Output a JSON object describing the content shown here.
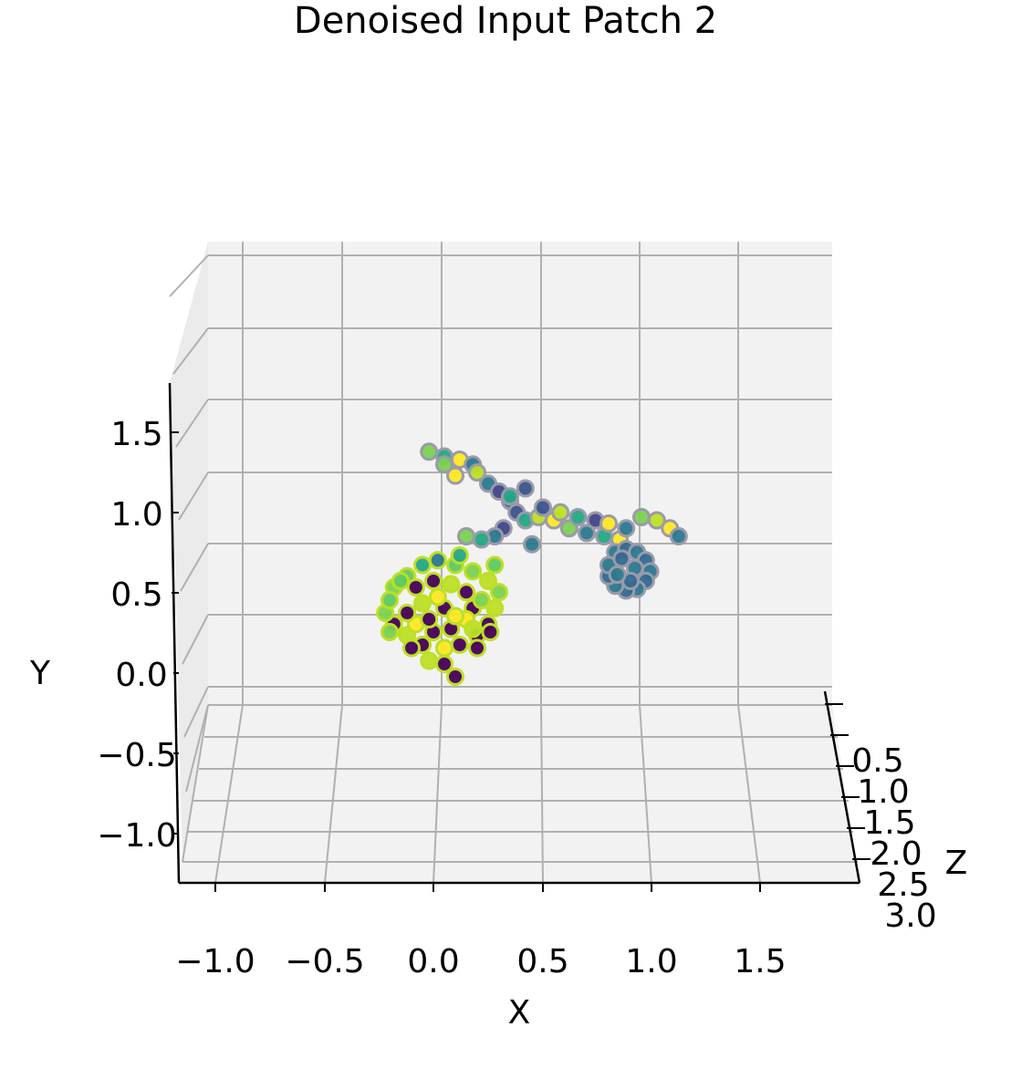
{
  "chart_data": {
    "type": "scatter",
    "title": "Denoised Input Patch 2",
    "xlabel": "X",
    "ylabel": "Y",
    "zlabel": "Z",
    "x_ticks": [
      "−1.0",
      "−0.5",
      "0.0",
      "0.5",
      "1.0",
      "1.5"
    ],
    "y_ticks": [
      "−1.0",
      "−0.5",
      "0.0",
      "0.5",
      "1.0",
      "1.5"
    ],
    "z_ticks": [
      "0.5",
      "1.0",
      "1.5",
      "2.0",
      "2.5",
      "3.0"
    ],
    "xlim": [
      -1.2,
      1.9
    ],
    "ylim": [
      -1.3,
      1.8
    ],
    "grid": true,
    "colormap": "viridis",
    "series": [
      {
        "group": "upper-arm",
        "points": [
          [
            -0.02,
            1.53
          ],
          [
            0.05,
            1.5
          ],
          [
            0.12,
            1.48
          ],
          [
            0.18,
            1.45
          ],
          [
            0.2,
            1.4
          ],
          [
            0.25,
            1.33
          ],
          [
            0.3,
            1.28
          ],
          [
            0.35,
            1.22
          ],
          [
            0.38,
            1.15
          ],
          [
            0.42,
            1.1
          ],
          [
            0.48,
            1.12
          ],
          [
            0.55,
            1.1
          ],
          [
            0.62,
            1.05
          ],
          [
            0.7,
            1.02
          ],
          [
            0.78,
            1.0
          ],
          [
            0.85,
            0.98
          ],
          [
            0.32,
            1.05
          ],
          [
            0.28,
            1.0
          ],
          [
            0.22,
            0.98
          ],
          [
            0.15,
            1.0
          ],
          [
            0.5,
            1.18
          ],
          [
            0.58,
            1.15
          ],
          [
            0.66,
            1.12
          ],
          [
            0.74,
            1.1
          ],
          [
            0.8,
            1.08
          ],
          [
            0.88,
            1.05
          ],
          [
            0.95,
            1.12
          ],
          [
            1.02,
            1.1
          ],
          [
            1.08,
            1.05
          ],
          [
            1.12,
            1.0
          ],
          [
            0.42,
            1.3
          ],
          [
            0.35,
            1.25
          ],
          [
            0.1,
            1.38
          ],
          [
            0.05,
            1.45
          ],
          [
            0.45,
            0.95
          ]
        ],
        "colors": [
          "#7ad151",
          "#22a884",
          "#fde725",
          "#2a788e",
          "#bddf26",
          "#2a788e",
          "#414487",
          "#2a788e",
          "#3b528b",
          "#22a884",
          "#bddf26",
          "#fde725",
          "#7ad151",
          "#2a788e",
          "#22a884",
          "#fde725",
          "#414487",
          "#2a788e",
          "#22a884",
          "#7ad151",
          "#3b528b",
          "#bddf26",
          "#22a884",
          "#414487",
          "#fde725",
          "#2a788e",
          "#7ad151",
          "#bddf26",
          "#fde725",
          "#2a788e",
          "#3b528b",
          "#22a884",
          "#fde725",
          "#7ad151",
          "#2a788e"
        ]
      },
      {
        "group": "ring",
        "points": [
          [
            0.83,
            0.9
          ],
          [
            0.88,
            0.92
          ],
          [
            0.93,
            0.9
          ],
          [
            0.97,
            0.85
          ],
          [
            0.99,
            0.78
          ],
          [
            0.97,
            0.72
          ],
          [
            0.93,
            0.67
          ],
          [
            0.88,
            0.66
          ],
          [
            0.83,
            0.69
          ],
          [
            0.8,
            0.75
          ],
          [
            0.8,
            0.82
          ],
          [
            0.86,
            0.86
          ],
          [
            0.92,
            0.8
          ],
          [
            0.9,
            0.72
          ],
          [
            0.84,
            0.76
          ]
        ],
        "colors": [
          "#2a788e",
          "#31688e",
          "#2a788e",
          "#31688e",
          "#2a788e",
          "#31688e",
          "#2a788e",
          "#31688e",
          "#2a788e",
          "#31688e",
          "#2a788e",
          "#31688e",
          "#2a788e",
          "#31688e",
          "#2a788e"
        ]
      },
      {
        "group": "hand-cluster",
        "points": [
          [
            -0.18,
            0.68
          ],
          [
            -0.12,
            0.75
          ],
          [
            -0.05,
            0.82
          ],
          [
            0.02,
            0.85
          ],
          [
            0.1,
            0.82
          ],
          [
            0.18,
            0.78
          ],
          [
            0.25,
            0.72
          ],
          [
            0.3,
            0.65
          ],
          [
            0.28,
            0.55
          ],
          [
            0.25,
            0.45
          ],
          [
            0.2,
            0.38
          ],
          [
            0.12,
            0.32
          ],
          [
            0.05,
            0.3
          ],
          [
            -0.05,
            0.32
          ],
          [
            -0.12,
            0.38
          ],
          [
            -0.18,
            0.45
          ],
          [
            -0.22,
            0.52
          ],
          [
            -0.2,
            0.6
          ],
          [
            -0.08,
            0.68
          ],
          [
            0.0,
            0.72
          ],
          [
            0.08,
            0.7
          ],
          [
            0.15,
            0.65
          ],
          [
            0.18,
            0.55
          ],
          [
            0.15,
            0.48
          ],
          [
            0.08,
            0.42
          ],
          [
            0.0,
            0.4
          ],
          [
            -0.08,
            0.45
          ],
          [
            -0.12,
            0.52
          ],
          [
            -0.05,
            0.58
          ],
          [
            0.05,
            0.55
          ],
          [
            0.1,
            0.5
          ],
          [
            0.22,
            0.6
          ],
          [
            -0.15,
            0.72
          ],
          [
            -0.1,
            0.3
          ],
          [
            0.05,
            0.2
          ],
          [
            0.1,
            0.12
          ],
          [
            -0.02,
            0.22
          ],
          [
            0.2,
            0.3
          ],
          [
            0.02,
            0.62
          ],
          [
            0.12,
            0.88
          ],
          [
            0.28,
            0.82
          ],
          [
            -0.02,
            0.48
          ],
          [
            0.18,
            0.42
          ],
          [
            -0.2,
            0.4
          ],
          [
            0.26,
            0.4
          ]
        ],
        "colors": [
          "#7ad151",
          "#5ec962",
          "#22a884",
          "#2a788e",
          "#5ec962",
          "#7ad151",
          "#bddf26",
          "#7ad151",
          "#bddf26",
          "#440154",
          "#440154",
          "#440154",
          "#fde725",
          "#440154",
          "#bddf26",
          "#440154",
          "#7ad151",
          "#5ec962",
          "#440154",
          "#440154",
          "#bddf26",
          "#440154",
          "#440154",
          "#fde725",
          "#440154",
          "#440154",
          "#fde725",
          "#440154",
          "#bddf26",
          "#440154",
          "#fde725",
          "#7ad151",
          "#5ec962",
          "#440154",
          "#440154",
          "#440154",
          "#bddf26",
          "#440154",
          "#fde725",
          "#22a884",
          "#5ec962",
          "#440154",
          "#bddf26",
          "#7ad151",
          "#440154"
        ]
      }
    ]
  }
}
